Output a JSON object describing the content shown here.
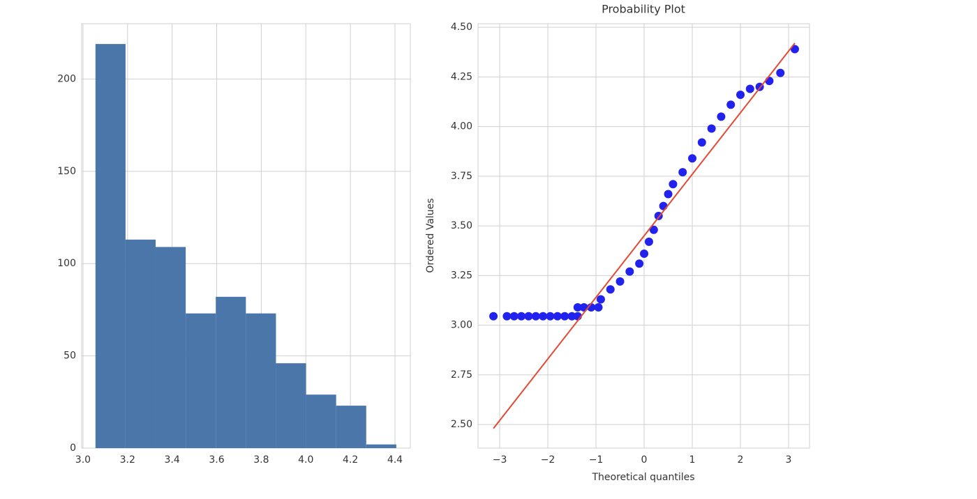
{
  "chart_data": [
    {
      "type": "histogram",
      "bins": [
        3.056,
        3.191,
        3.326,
        3.461,
        3.596,
        3.731,
        3.866,
        4.001,
        4.136,
        4.271,
        4.406
      ],
      "values": [
        219,
        113,
        109,
        73,
        82,
        73,
        46,
        29,
        23,
        2
      ],
      "color": "#4a76aa",
      "xlim": [
        2.994,
        4.469
      ],
      "ylim": [
        0,
        230
      ],
      "xticks": [
        {
          "value": 3,
          "label": "3.0"
        },
        {
          "value": 3.2,
          "label": "3.2"
        },
        {
          "value": 3.4,
          "label": "3.4"
        },
        {
          "value": 3.6,
          "label": "3.6"
        },
        {
          "value": 3.8,
          "label": "3.8"
        },
        {
          "value": 4,
          "label": "4.0"
        },
        {
          "value": 4.2,
          "label": "4.2"
        },
        {
          "value": 4.4,
          "label": "4.4"
        }
      ],
      "yticks": [
        0,
        50,
        100,
        150,
        200
      ],
      "grid": true
    },
    {
      "type": "scatter",
      "title": "Probability Plot",
      "x_label": "Theoretical quantiles",
      "y_label": "Ordered Values",
      "xlim": [
        -3.45,
        3.435
      ],
      "ylim": [
        2.381,
        4.518
      ],
      "xticks": [
        {
          "value": -3,
          "label": "−3"
        },
        {
          "value": -2,
          "label": "−2"
        },
        {
          "value": -1,
          "label": "−1"
        },
        0,
        1,
        2,
        3
      ],
      "yticks": [
        {
          "value": 2.5,
          "label": "2.50"
        },
        {
          "value": 2.75,
          "label": "2.75"
        },
        {
          "value": 3,
          "label": "3.00"
        },
        {
          "value": 3.25,
          "label": "3.25"
        },
        {
          "value": 3.5,
          "label": "3.50"
        },
        {
          "value": 3.75,
          "label": "3.75"
        },
        {
          "value": 4,
          "label": "4.00"
        },
        {
          "value": 4.25,
          "label": "4.25"
        },
        {
          "value": 4.5,
          "label": "4.50"
        }
      ],
      "grid": true,
      "points": {
        "color": "#2222ee",
        "x": [
          -3.13,
          -2.85,
          -2.7,
          -2.55,
          -2.4,
          -2.25,
          -2.1,
          -1.95,
          -1.8,
          -1.65,
          -1.5,
          -1.38,
          -1.38,
          -1.25,
          -1.1,
          -0.95,
          -0.9,
          -0.7,
          -0.5,
          -0.3,
          -0.1,
          0.0,
          0.1,
          0.2,
          0.3,
          0.4,
          0.5,
          0.6,
          0.8,
          1.0,
          1.2,
          1.4,
          1.6,
          1.8,
          2.0,
          2.2,
          2.4,
          2.6,
          2.83,
          3.13
        ],
        "y": [
          3.045,
          3.045,
          3.045,
          3.045,
          3.045,
          3.045,
          3.045,
          3.045,
          3.045,
          3.045,
          3.045,
          3.045,
          3.09,
          3.09,
          3.09,
          3.09,
          3.13,
          3.18,
          3.22,
          3.27,
          3.31,
          3.36,
          3.42,
          3.48,
          3.55,
          3.6,
          3.66,
          3.71,
          3.77,
          3.84,
          3.92,
          3.99,
          4.05,
          4.11,
          4.16,
          4.19,
          4.2,
          4.23,
          4.27,
          4.39
        ]
      },
      "line": {
        "color": "#e24a33",
        "x": [
          -3.13,
          3.13
        ],
        "y": [
          2.48,
          4.42
        ]
      }
    }
  ]
}
